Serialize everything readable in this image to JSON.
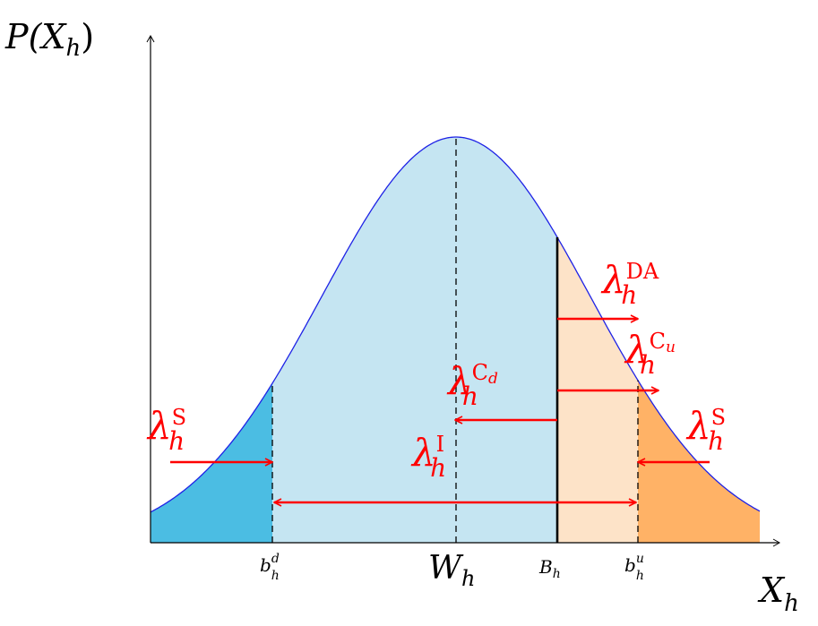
{
  "axes": {
    "y_label": {
      "main": "P(X",
      "sub": "h",
      "close": ")"
    },
    "x_label": {
      "main": "X",
      "sub": "h"
    }
  },
  "tick_labels": {
    "b_d": {
      "main": "b",
      "sub": "h",
      "sup": "d"
    },
    "W": {
      "main": "W",
      "sub": "h"
    },
    "B": {
      "main": "B",
      "sub": "h"
    },
    "b_u": {
      "main": "b",
      "sub": "h",
      "sup": "u"
    }
  },
  "rates": {
    "storage_left": {
      "main": "λ",
      "sub": "h",
      "sup": "S"
    },
    "storage_right": {
      "main": "λ",
      "sub": "h",
      "sup": "S"
    },
    "direct_access": {
      "main": "λ",
      "sub": "h",
      "sup": "DA"
    },
    "c_up": {
      "main": "λ",
      "sub": "h",
      "sup": "C",
      "sup_sub": "u"
    },
    "c_down": {
      "main": "λ",
      "sub": "h",
      "sup": "C",
      "sup_sub": "d"
    },
    "intraday": {
      "main": "λ",
      "sub": "h",
      "sup": "I"
    }
  },
  "colors": {
    "curve": "#1e22e6",
    "main_fill": "#c5e5f2",
    "left_tail": "#4bbde3",
    "right_tail": "#ffb266",
    "right_mid": "#fde3c8",
    "arrow": "#ff0000",
    "axis": "#000000"
  }
}
